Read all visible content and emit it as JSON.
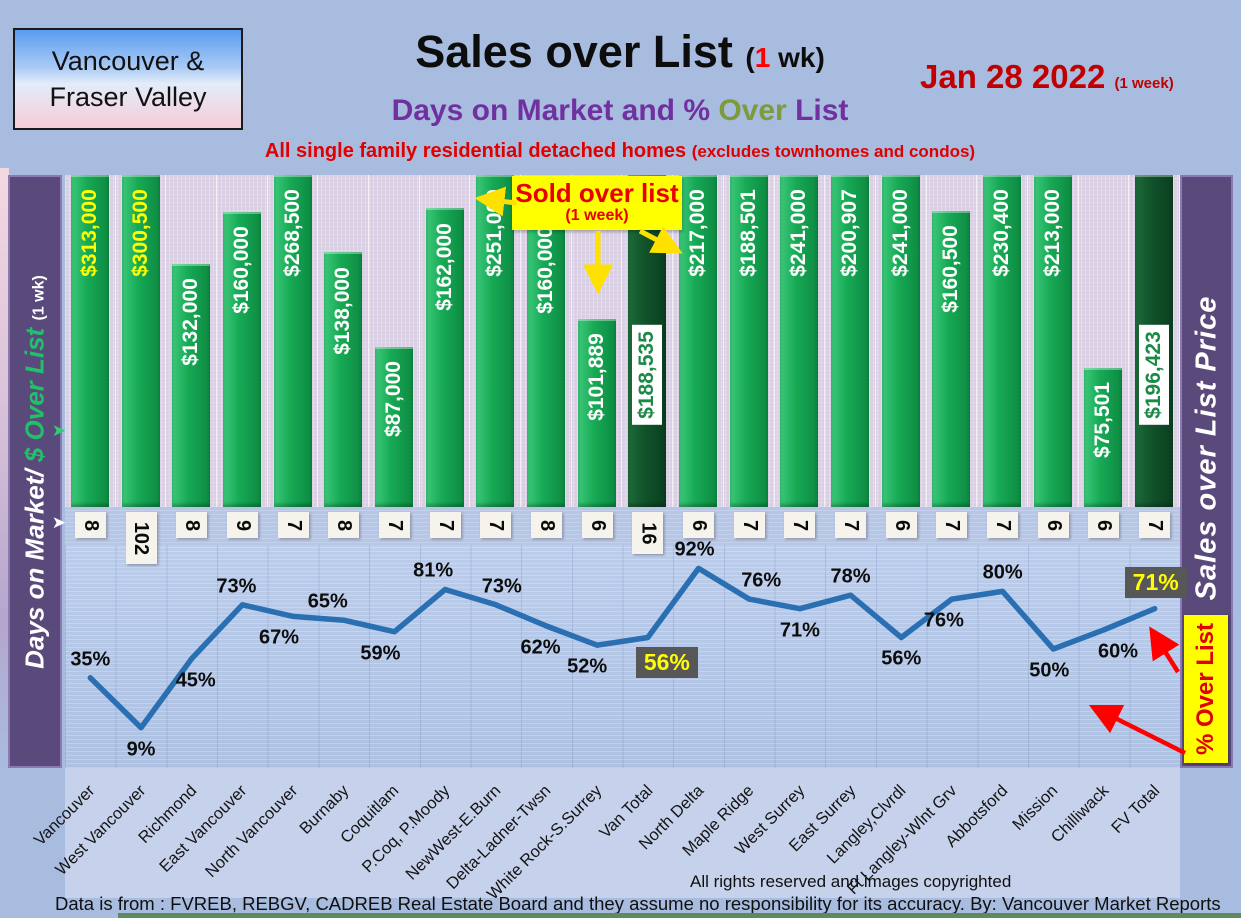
{
  "header": {
    "region_box": {
      "line1": "Vancouver &",
      "line2": "Fraser Valley"
    },
    "title": {
      "main": "Sales over List",
      "paren": "(",
      "one": "1",
      "rest": " wk)"
    },
    "subtitle": {
      "part1": "Days on Market and % ",
      "over": "Over",
      "part2": " List"
    },
    "tagline": {
      "main": "All single family residential detached homes ",
      "paren": "(excludes townhomes and condos)"
    },
    "date": {
      "main": "Jan 28  2022",
      "suffix": "(1 week)"
    }
  },
  "axes": {
    "left_band": {
      "label_white": "Days on Market/",
      "label_green": "$ Over List",
      "label_small": "(1 wk)"
    },
    "right_band": {
      "label": "Sales over List Price"
    },
    "pct_badge": "% Over List"
  },
  "callout": {
    "title": "Sold over list",
    "subtitle": "(1 week)"
  },
  "footer": {
    "copyright": "All rights reserved and  images copyrighted",
    "disclaimer": "Data is from : FVREB, REBGV, CADREB Real Estate Board and they assume no responsibility for its accuracy. By: Vancouver Market Reports"
  },
  "chart_data": {
    "type": "combo (bar $-over-list + line %-over-list + days-on-market labels)",
    "title": "Sales over List (1 wk)",
    "subtitle": "Days on Market and % Over List",
    "date": "Jan 28 2022 (1 week)",
    "categories": [
      "Vancouver",
      "West Vancouver",
      "Richmond",
      "East Vancouver",
      "North Vancouver",
      "Burnaby",
      "Coquitlam",
      "P.Coq, P.Moody",
      "NewWest-E.Burn",
      "Delta-Ladner-Twsn",
      "White Rock-S.Surrey",
      "Van Total",
      "North Delta",
      "Maple Ridge",
      "West Surrey",
      "East Surrey",
      "Langley,Clvrdl",
      "Ft Langley-Wlnt Grv",
      "Abbotsford",
      "Mission",
      "Chilliwack",
      "FV Total"
    ],
    "series": [
      {
        "name": "$ Over List",
        "type": "bar",
        "values": [
          313000,
          300500,
          132000,
          160000,
          268500,
          138000,
          87000,
          162000,
          251000,
          160000,
          101889,
          188535,
          217000,
          188501,
          241000,
          200907,
          241000,
          160500,
          230400,
          213000,
          75501,
          196423
        ],
        "labels": [
          "$313,000",
          "$300,500",
          "$132,000",
          "$160,000",
          "$268,500",
          "$138,000",
          "$87,000",
          "$162,000",
          "$251,000",
          "$160,000",
          "$101,889",
          "$188,535",
          "$217,000",
          "$188,501",
          "$241,000",
          "$200,907",
          "$241,000",
          "$160,500",
          "$230,400",
          "$213,000",
          "$75,501",
          "$196,423"
        ]
      },
      {
        "name": "Days on Market",
        "type": "label",
        "values": [
          "8",
          "102",
          "8",
          "9",
          "7",
          "8",
          "7",
          "7",
          "7",
          "8",
          "6",
          "16",
          "6",
          "7",
          "7",
          "7",
          "6",
          "7",
          "7",
          "6",
          "6",
          "7"
        ]
      },
      {
        "name": "% Over List",
        "type": "line",
        "values": [
          35,
          9,
          45,
          73,
          67,
          65,
          59,
          81,
          73,
          62,
          52,
          56,
          92,
          76,
          71,
          78,
          56,
          76,
          80,
          50,
          60,
          71
        ],
        "labels": [
          "35%",
          "9%",
          "45%",
          "73%",
          "67%",
          "65%",
          "59%",
          "81%",
          "73%",
          "62%",
          "52%",
          "56%",
          "92%",
          "76%",
          "71%",
          "78%",
          "56%",
          "76%",
          "80%",
          "50%",
          "60%",
          "71%"
        ]
      }
    ],
    "bar_axis": {
      "min": 0,
      "max": 180000,
      "bars_clipped_at_max": true
    },
    "pct_axis": {
      "min": 0,
      "max": 100
    },
    "grid": "subtle vertical category gridlines; legend none",
    "total_indices": [
      11,
      21
    ],
    "yellow_value_label_indices": [
      0,
      1
    ],
    "highlight_pct_indices": [
      11,
      21
    ],
    "pct_label_positions": [
      "above",
      "below",
      "below",
      "above",
      "below",
      "above",
      "below",
      "above",
      "above",
      "below",
      "below",
      "box-below",
      "above",
      "above",
      "below",
      "above",
      "below",
      "below",
      "above",
      "below",
      "below",
      "box-above"
    ],
    "colors": {
      "bar_green": "#17aa55",
      "bar_dark_green": "#11522a",
      "line_blue": "#2a6fb2",
      "highlight_box_bg": "#575757",
      "highlight_box_text": "#ffff00",
      "accent_red": "#c00000",
      "band_purple": "#5a4a7c",
      "callout_yellow": "#ffff00",
      "bar_area_bg": "#d9cee4",
      "line_area_bg": "#b5c7e4",
      "subtitle_purple": "#7030a0",
      "subtitle_olive": "#7e9a3d"
    }
  }
}
